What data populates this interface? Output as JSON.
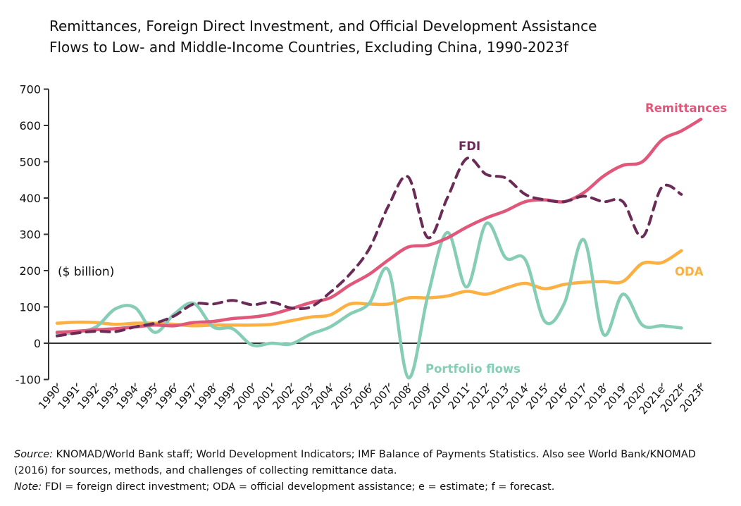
{
  "chart_data": {
    "type": "line",
    "title": "Remittances, Foreign Direct Investment, and Official Development  Assistance Flows to Low- and Middle-Income Countries, Excluding China, 1990-2023f",
    "title_lines": [
      "Remittances, Foreign Direct Investment, and Official Development  Assistance",
      "Flows to Low- and Middle-Income Countries, Excluding China, 1990-2023f"
    ],
    "ylabel": "($ billion)",
    "xlabel": "",
    "ylim": [
      -100,
      700
    ],
    "yticks": [
      "-100",
      "0",
      "100",
      "200",
      "300",
      "400",
      "500",
      "600",
      "700"
    ],
    "x": [
      "1990",
      "1991",
      "1992",
      "1993",
      "1994",
      "1995",
      "1996",
      "1997",
      "1998",
      "1999",
      "2000",
      "2001",
      "2002",
      "2003",
      "2004",
      "2005",
      "2006",
      "2007",
      "2008",
      "2009",
      "2010",
      "2011",
      "2012",
      "2013",
      "2014",
      "2015",
      "2016",
      "2017",
      "2018",
      "2019",
      "2020",
      "2021e",
      "2022f",
      "2023f"
    ],
    "series": [
      {
        "name": "Remittances",
        "color": "#e0577a",
        "dashed": false,
        "values": [
          30,
          33,
          37,
          40,
          45,
          50,
          48,
          57,
          60,
          68,
          72,
          80,
          95,
          112,
          125,
          160,
          190,
          230,
          265,
          270,
          290,
          320,
          345,
          365,
          390,
          395,
          390,
          415,
          460,
          490,
          500,
          560,
          585,
          617
        ]
      },
      {
        "name": "FDI",
        "color": "#6b2b57",
        "dashed": true,
        "values": [
          20,
          28,
          33,
          32,
          45,
          55,
          75,
          108,
          108,
          118,
          106,
          113,
          97,
          100,
          140,
          190,
          260,
          380,
          458,
          291,
          400,
          509,
          465,
          455,
          410,
          395,
          390,
          405,
          390,
          390,
          293,
          430,
          410,
          null
        ]
      },
      {
        "name": "ODA",
        "color": "#fbb041",
        "dashed": false,
        "values": [
          55,
          58,
          57,
          52,
          55,
          55,
          52,
          48,
          50,
          50,
          50,
          52,
          62,
          72,
          78,
          108,
          108,
          108,
          125,
          125,
          130,
          143,
          135,
          152,
          165,
          150,
          162,
          168,
          170,
          170,
          220,
          222,
          255,
          null
        ]
      },
      {
        "name": "Portfolio flows",
        "color": "#86cdb5",
        "dashed": false,
        "values": [
          25,
          30,
          45,
          95,
          98,
          30,
          80,
          110,
          45,
          40,
          -5,
          0,
          -2,
          25,
          45,
          80,
          110,
          200,
          -95,
          130,
          305,
          155,
          330,
          235,
          230,
          60,
          110,
          285,
          25,
          135,
          50,
          48,
          42,
          null
        ]
      }
    ],
    "legend_placement": "inline labels"
  },
  "footer": {
    "source_label": "Source:",
    "source_text": " KNOMAD/World Bank staff; World Development Indicators; IMF Balance of Payments Statistics. Also see World Bank/KNOMAD (2016) for sources, methods, and challenges of collecting remittance data.",
    "note_label": "Note:",
    "note_text": " FDI = foreign direct investment; ODA = official development assistance; e = estimate; f = forecast."
  }
}
